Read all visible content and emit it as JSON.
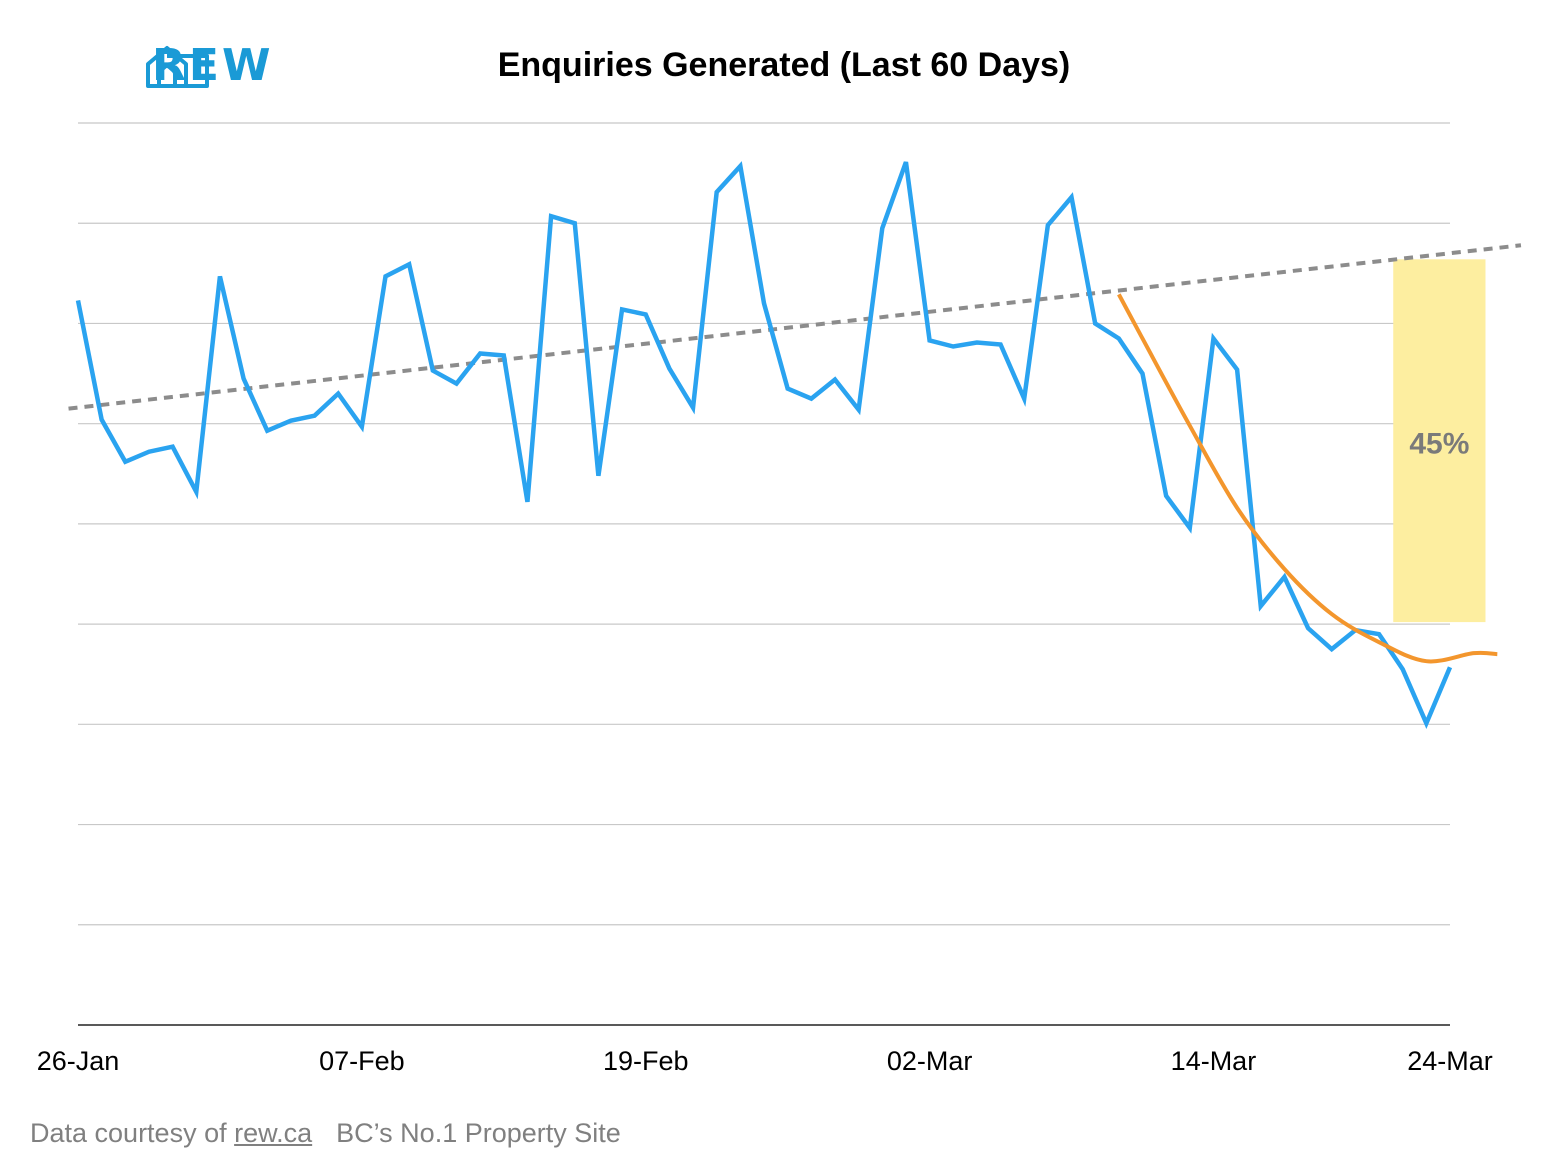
{
  "brand": {
    "logo_text": "REW",
    "color": "#1a9ad6"
  },
  "footer": {
    "prefix": "Data courtesy of",
    "link": "rew.ca",
    "tagline": "BC’s No.1 Property Site"
  },
  "chart_data": {
    "type": "line",
    "title": "Enquiries Generated (Last 60 Days)",
    "xlabel": "",
    "ylabel": "",
    "x_tick_labels": [
      "26-Jan",
      "07-Feb",
      "19-Feb",
      "02-Mar",
      "14-Mar",
      "24-Mar"
    ],
    "x_tick_index": [
      0,
      12,
      24,
      36,
      48,
      58
    ],
    "ylim": [
      0,
      9
    ],
    "y_gridlines": 9,
    "y_tick_labels_shown": false,
    "grid": true,
    "legend": "none",
    "colors": {
      "series": "#2aa3f0",
      "trend": "#8c8c8c",
      "fit": "#f3962d",
      "highlight": "#fdeea0",
      "annotation": "#7a7a7a"
    },
    "series": [
      {
        "values": [
          7.23,
          6.04,
          5.62,
          5.72,
          5.77,
          5.32,
          7.47,
          6.45,
          5.93,
          6.03,
          6.08,
          6.3,
          5.97,
          7.47,
          7.59,
          6.53,
          6.4,
          6.7,
          6.68,
          5.22,
          8.07,
          8.0,
          5.48,
          7.14,
          7.09,
          6.55,
          6.16,
          8.31,
          8.57,
          7.2,
          6.35,
          6.25,
          6.44,
          6.14,
          7.95,
          8.61,
          6.83,
          6.77,
          6.81,
          6.79,
          6.25,
          7.98,
          8.26,
          7.0,
          6.85,
          6.5,
          5.28,
          4.96,
          6.85,
          6.54,
          4.18,
          4.47,
          3.96,
          3.75,
          3.94,
          3.9,
          3.55,
          3.01,
          3.57
        ]
      }
    ],
    "trend_line": {
      "style": "dotted",
      "x": [
        -0.4,
        61.0
      ],
      "y": [
        6.15,
        7.78
      ]
    },
    "fitted_curve": {
      "x": [
        44.0,
        45.0,
        47.0,
        49.0,
        51.0,
        53.0,
        55.0,
        57.0,
        59.0,
        60.0
      ],
      "y": [
        7.29,
        6.85,
        5.98,
        5.16,
        4.55,
        4.1,
        3.82,
        3.63,
        3.71,
        3.7
      ]
    },
    "annotations": [
      {
        "text": "45%",
        "type": "highlight-box",
        "x_range": [
          55.6,
          59.5
        ],
        "y_range": [
          4.02,
          7.64
        ]
      }
    ]
  }
}
